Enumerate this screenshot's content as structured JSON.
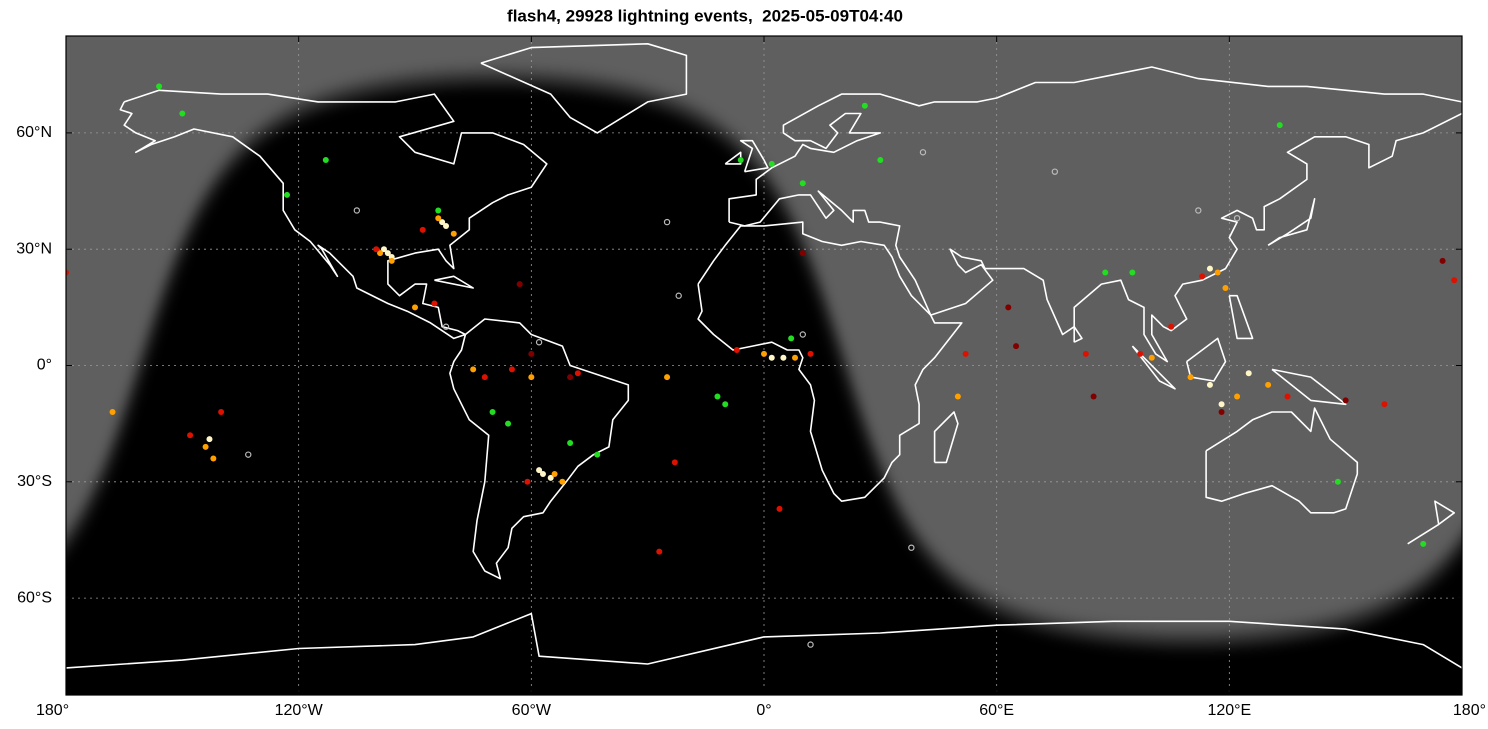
{
  "chart_data": {
    "type": "scatter",
    "title": "flash4, 29928 lightning events,  2025-05-09T04:40",
    "xlim": [
      -180,
      180
    ],
    "ylim": [
      -85,
      85
    ],
    "xticks": [
      {
        "value": -180,
        "label": "180°"
      },
      {
        "value": -120,
        "label": "120°W"
      },
      {
        "value": -60,
        "label": "60°W"
      },
      {
        "value": 0,
        "label": "0°"
      },
      {
        "value": 60,
        "label": "60°E"
      },
      {
        "value": 120,
        "label": "120°E"
      },
      {
        "value": 180,
        "label": "180°"
      }
    ],
    "yticks": [
      {
        "value": -60,
        "label": "60°S"
      },
      {
        "value": -30,
        "label": "30°S"
      },
      {
        "value": 0,
        "label": "0°"
      },
      {
        "value": 30,
        "label": "30°N"
      },
      {
        "value": 60,
        "label": "60°N"
      }
    ],
    "grid": true,
    "series": [
      {
        "color": "#fff6c8",
        "marker": "dot",
        "x": [
          -97,
          -96,
          -98,
          -82,
          -83,
          -58,
          -57,
          -55,
          2,
          5,
          -143,
          115,
          118,
          125,
          115
        ],
        "y": [
          29,
          28,
          30,
          36,
          37,
          -27,
          -28,
          -29,
          2,
          2,
          -19,
          25,
          -10,
          -2,
          -5
        ]
      },
      {
        "color": "#ffa000",
        "marker": "dot",
        "x": [
          -96,
          -99,
          -84,
          -80,
          -90,
          -75,
          -60,
          -54,
          -52,
          0,
          8,
          -144,
          -142,
          117,
          119,
          110,
          122,
          130,
          -168,
          -25,
          50,
          100
        ],
        "y": [
          27,
          29,
          38,
          34,
          15,
          -1,
          -3,
          -28,
          -30,
          3,
          2,
          -21,
          -24,
          24,
          20,
          -3,
          -8,
          -5,
          -12,
          -3,
          -8,
          2
        ]
      },
      {
        "color": "#dd1100",
        "marker": "dot",
        "x": [
          -100,
          -88,
          -85,
          -72,
          -65,
          -48,
          -61,
          -7,
          12,
          -140,
          -148,
          113,
          105,
          97,
          135,
          160,
          83,
          52,
          -180,
          178,
          -27,
          4,
          -23
        ],
        "y": [
          30,
          35,
          16,
          -3,
          -1,
          -2,
          -30,
          4,
          3,
          -12,
          -18,
          23,
          10,
          3,
          -8,
          -10,
          3,
          3,
          24,
          22,
          -48,
          -37,
          -25
        ]
      },
      {
        "color": "#800000",
        "marker": "dot",
        "x": [
          -63,
          10,
          -60,
          -50,
          65,
          85,
          63,
          118,
          150,
          175
        ],
        "y": [
          21,
          29,
          3,
          -3,
          5,
          -8,
          15,
          -12,
          -9,
          27
        ]
      },
      {
        "color": "#22dd22",
        "marker": "dot",
        "x": [
          -156,
          -150,
          -113,
          -123,
          -84,
          -70,
          -66,
          -12,
          7,
          2,
          -6,
          26,
          30,
          10,
          88,
          133,
          148,
          170,
          -50,
          -43,
          -10,
          95
        ],
        "y": [
          72,
          65,
          53,
          44,
          40,
          -12,
          -15,
          -8,
          7,
          52,
          53,
          67,
          53,
          47,
          24,
          62,
          -30,
          -46,
          -20,
          -23,
          -10,
          24
        ]
      },
      {
        "color": "#bbbbbb",
        "marker": "ring",
        "x": [
          -105,
          -133,
          -82,
          -58,
          -22,
          10,
          41,
          75,
          122,
          112,
          38,
          12,
          -25
        ],
        "y": [
          40,
          -23,
          10,
          6,
          18,
          8,
          55,
          50,
          38,
          40,
          -47,
          -72,
          37
        ]
      }
    ]
  }
}
